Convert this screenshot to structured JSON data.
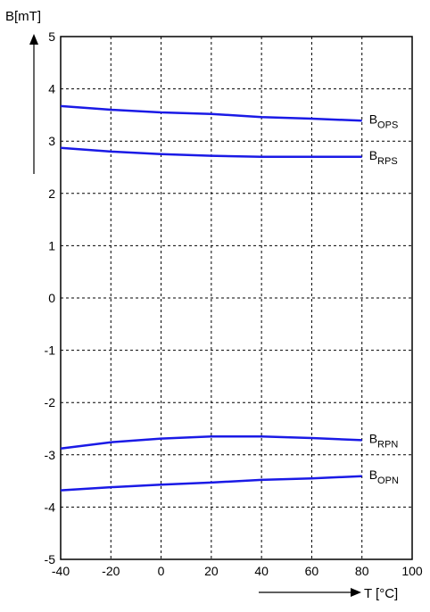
{
  "chart_data": {
    "type": "line",
    "xlabel": "T [°C]",
    "ylabel": "B[mT]",
    "xlim": [
      -40,
      100
    ],
    "ylim": [
      -5,
      5
    ],
    "x_ticks": [
      "-40",
      "-20",
      "0",
      "20",
      "40",
      "60",
      "80",
      "100"
    ],
    "y_ticks": [
      "5",
      "4",
      "3",
      "2",
      "1",
      "0",
      "-1",
      "-2",
      "-3",
      "-4",
      "-5"
    ],
    "grid": true,
    "series_color": "#1a1ae6",
    "series": [
      {
        "name": "B",
        "sub": "OPS",
        "x": [
          -40,
          -20,
          0,
          20,
          40,
          60,
          80
        ],
        "values": [
          3.67,
          3.6,
          3.55,
          3.52,
          3.46,
          3.43,
          3.39
        ]
      },
      {
        "name": "B",
        "sub": "RPS",
        "x": [
          -40,
          -20,
          0,
          20,
          40,
          60,
          80
        ],
        "values": [
          2.87,
          2.8,
          2.75,
          2.72,
          2.7,
          2.7,
          2.7
        ]
      },
      {
        "name": "B",
        "sub": "RPN",
        "x": [
          -40,
          -20,
          0,
          20,
          40,
          60,
          80
        ],
        "values": [
          -2.88,
          -2.76,
          -2.69,
          -2.65,
          -2.65,
          -2.68,
          -2.72
        ]
      },
      {
        "name": "B",
        "sub": "OPN",
        "x": [
          -40,
          -20,
          0,
          20,
          40,
          60,
          80
        ],
        "values": [
          -3.68,
          -3.62,
          -3.57,
          -3.53,
          -3.48,
          -3.45,
          -3.41
        ]
      }
    ]
  }
}
